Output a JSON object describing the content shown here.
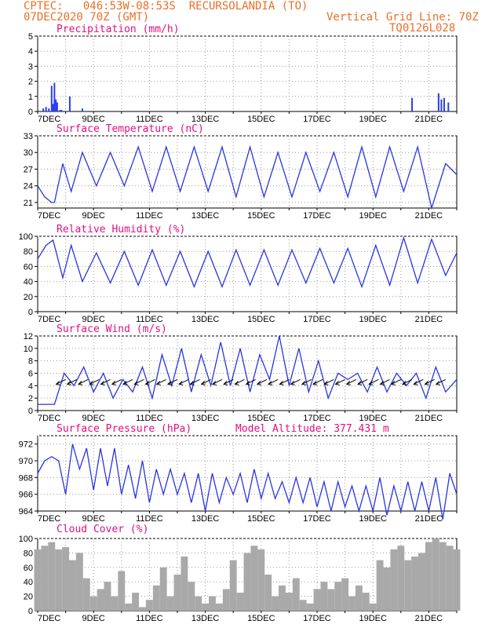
{
  "header": {
    "line1": "CPTEC:   046:53W-08:53S  RECURSOLANDIA (TO)",
    "line2": "07DEC2020 70Z (GMT)",
    "grid_note": "Vertical Grid Line: 70Z",
    "run_id": "TQ0126L028"
  },
  "colors": {
    "header": "#e8702a",
    "title": "#e0107f",
    "line": "#2a35e0",
    "bar": "#2b3fe8",
    "cloud": "#a9a9a9"
  },
  "chart_data": [
    {
      "type": "bar",
      "title": "Precipitation (mm/h)",
      "ylim": [
        0,
        5
      ],
      "yticks": [
        "0",
        "1",
        "2",
        "3",
        "4",
        "5"
      ],
      "xticks": [
        "7DEC",
        "9DEC",
        "11DEC",
        "13DEC",
        "15DEC",
        "17DEC",
        "19DEC",
        "21DEC"
      ],
      "xlim_days": [
        0,
        15
      ],
      "x_days": [
        0.2,
        0.3,
        0.4,
        0.5,
        0.55,
        0.6,
        0.65,
        0.7,
        0.8,
        0.85,
        1.15,
        1.6,
        13.4,
        14.35,
        14.45,
        14.55,
        14.7
      ],
      "values": [
        0.2,
        0.3,
        0.2,
        1.7,
        0.5,
        1.9,
        0.8,
        0.6,
        0.1,
        0.1,
        1.0,
        0.2,
        0.9,
        1.2,
        0.8,
        0.9,
        0.6
      ]
    },
    {
      "type": "line",
      "title": "Surface Temperature (nC)",
      "ylim": [
        20,
        33
      ],
      "yticks": [
        "21",
        "24",
        "27",
        "30",
        "33"
      ],
      "xticks": [
        "7DEC",
        "9DEC",
        "11DEC",
        "13DEC",
        "15DEC",
        "17DEC",
        "19DEC",
        "21DEC"
      ],
      "xlim_days": [
        0,
        15
      ],
      "x_days": [
        0.0,
        0.25,
        0.5,
        0.6,
        0.9,
        1.2,
        1.6,
        2.1,
        2.6,
        3.1,
        3.6,
        4.1,
        4.6,
        5.1,
        5.6,
        6.1,
        6.6,
        7.1,
        7.6,
        8.1,
        8.6,
        9.1,
        9.6,
        10.1,
        10.6,
        11.1,
        11.6,
        12.1,
        12.6,
        13.1,
        13.6,
        14.1,
        14.6,
        15.0
      ],
      "values": [
        24,
        22,
        21,
        21,
        28,
        23,
        30,
        24,
        30,
        24,
        31,
        23,
        31,
        23,
        31,
        23,
        31,
        22,
        31,
        22,
        30,
        22,
        30,
        23,
        30,
        22,
        31,
        22,
        31,
        23,
        31,
        20,
        28,
        26
      ]
    },
    {
      "type": "line",
      "title": "Relative Humidity (%)",
      "ylim": [
        0,
        100
      ],
      "yticks": [
        "0",
        "20",
        "40",
        "60",
        "80",
        "100"
      ],
      "xticks": [
        "7DEC",
        "9DEC",
        "11DEC",
        "13DEC",
        "15DEC",
        "17DEC",
        "19DEC",
        "21DEC"
      ],
      "xlim_days": [
        0,
        15
      ],
      "x_days": [
        0.0,
        0.3,
        0.55,
        0.9,
        1.2,
        1.6,
        2.1,
        2.6,
        3.1,
        3.6,
        4.1,
        4.6,
        5.1,
        5.6,
        6.1,
        6.6,
        7.1,
        7.6,
        8.1,
        8.6,
        9.1,
        9.6,
        10.1,
        10.6,
        11.1,
        11.6,
        12.1,
        12.6,
        13.1,
        13.6,
        14.1,
        14.6,
        15.0
      ],
      "values": [
        70,
        88,
        95,
        45,
        88,
        40,
        78,
        38,
        80,
        35,
        82,
        35,
        80,
        33,
        80,
        33,
        82,
        35,
        82,
        35,
        82,
        38,
        84,
        38,
        84,
        33,
        88,
        35,
        98,
        38,
        96,
        48,
        78
      ]
    },
    {
      "type": "line",
      "title": "Surface Wind (m/s)",
      "ylim": [
        0,
        12
      ],
      "yticks": [
        "0",
        "2",
        "4",
        "6",
        "8",
        "10",
        "12"
      ],
      "xticks": [
        "7DEC",
        "9DEC",
        "11DEC",
        "13DEC",
        "15DEC",
        "17DEC",
        "19DEC",
        "21DEC"
      ],
      "xlim_days": [
        0,
        15
      ],
      "x_days": [
        0.0,
        0.3,
        0.6,
        0.95,
        1.3,
        1.65,
        2.0,
        2.35,
        2.7,
        3.05,
        3.4,
        3.75,
        4.1,
        4.45,
        4.8,
        5.15,
        5.5,
        5.85,
        6.2,
        6.55,
        6.9,
        7.25,
        7.6,
        7.95,
        8.3,
        8.65,
        9.0,
        9.35,
        9.7,
        10.05,
        10.4,
        10.75,
        11.1,
        11.45,
        11.8,
        12.15,
        12.5,
        12.85,
        13.2,
        13.55,
        13.9,
        14.25,
        14.6,
        15.0
      ],
      "values": [
        1,
        1,
        1,
        6,
        4,
        7,
        3,
        6,
        2,
        5,
        3,
        7,
        2,
        9,
        4,
        10,
        3,
        9,
        4,
        11,
        4,
        10,
        3,
        9,
        5,
        12,
        4,
        10,
        3,
        8,
        2,
        6,
        5,
        6,
        3,
        7,
        3,
        6,
        4,
        6,
        2,
        7,
        3,
        5
      ]
    },
    {
      "type": "line",
      "title": "Surface Pressure (hPa)",
      "annotation": "Model Altitude: 377.431 m",
      "ylim": [
        964,
        973
      ],
      "yticks": [
        "964",
        "966",
        "968",
        "970",
        "972"
      ],
      "xticks": [
        "7DEC",
        "9DEC",
        "11DEC",
        "13DEC",
        "15DEC",
        "17DEC",
        "19DEC",
        "21DEC"
      ],
      "xlim_days": [
        0,
        15
      ],
      "x_days": [
        0.0,
        0.25,
        0.5,
        0.75,
        1.0,
        1.25,
        1.5,
        1.75,
        2.0,
        2.25,
        2.5,
        2.75,
        3.0,
        3.25,
        3.5,
        3.75,
        4.0,
        4.25,
        4.5,
        4.75,
        5.0,
        5.25,
        5.5,
        5.75,
        6.0,
        6.25,
        6.5,
        6.75,
        7.0,
        7.25,
        7.5,
        7.75,
        8.0,
        8.25,
        8.5,
        8.75,
        9.0,
        9.25,
        9.5,
        9.75,
        10.0,
        10.25,
        10.5,
        10.75,
        11.0,
        11.25,
        11.5,
        11.75,
        12.0,
        12.25,
        12.5,
        12.75,
        13.0,
        13.25,
        13.5,
        13.75,
        14.0,
        14.25,
        14.5,
        14.75,
        15.0
      ],
      "values": [
        968.5,
        970,
        970.5,
        970,
        966,
        972,
        969,
        971.5,
        966.5,
        971.5,
        967,
        971.5,
        966,
        969.5,
        965.5,
        970,
        965,
        969,
        966,
        969,
        966,
        968.5,
        965,
        968.5,
        964,
        968.5,
        965,
        968,
        966,
        968.5,
        965,
        969,
        965.5,
        968.5,
        965.5,
        967.5,
        965,
        968,
        965,
        968,
        964.5,
        967.5,
        964,
        967.5,
        964.5,
        967,
        964,
        967,
        964,
        968,
        963.5,
        967,
        964,
        967.5,
        964,
        967.5,
        964,
        968,
        963,
        968.5,
        966
      ]
    },
    {
      "type": "area",
      "title": "Cloud Cover (%)",
      "ylim": [
        0,
        100
      ],
      "yticks": [
        "0",
        "20",
        "40",
        "60",
        "80",
        "100"
      ],
      "xticks": [
        "7DEC",
        "9DEC",
        "11DEC",
        "13DEC",
        "15DEC",
        "17DEC",
        "19DEC",
        "21DEC"
      ],
      "xlim_days": [
        0,
        15
      ],
      "x_days": [
        0.0,
        0.25,
        0.5,
        0.75,
        1.0,
        1.25,
        1.5,
        1.75,
        2.0,
        2.25,
        2.5,
        2.75,
        3.0,
        3.25,
        3.5,
        3.75,
        4.0,
        4.25,
        4.5,
        4.75,
        5.0,
        5.25,
        5.5,
        5.75,
        6.0,
        6.25,
        6.5,
        6.75,
        7.0,
        7.25,
        7.5,
        7.75,
        8.0,
        8.25,
        8.5,
        8.75,
        9.0,
        9.25,
        9.5,
        9.75,
        10.0,
        10.25,
        10.5,
        10.75,
        11.0,
        11.25,
        11.5,
        11.75,
        12.0,
        12.25,
        12.5,
        12.75,
        13.0,
        13.25,
        13.5,
        13.75,
        14.0,
        14.25,
        14.5,
        14.75,
        15.0
      ],
      "values": [
        85,
        90,
        95,
        85,
        88,
        70,
        80,
        45,
        20,
        30,
        40,
        20,
        55,
        10,
        25,
        5,
        15,
        35,
        60,
        20,
        50,
        75,
        40,
        20,
        10,
        20,
        10,
        30,
        70,
        25,
        80,
        90,
        85,
        50,
        20,
        35,
        25,
        45,
        15,
        10,
        30,
        40,
        30,
        40,
        45,
        20,
        35,
        25,
        10,
        70,
        60,
        85,
        90,
        70,
        75,
        80,
        95,
        100,
        95,
        90,
        85
      ]
    }
  ]
}
